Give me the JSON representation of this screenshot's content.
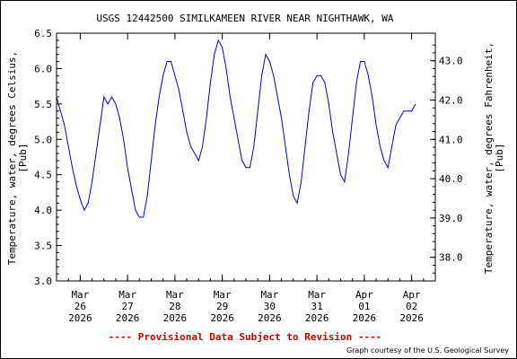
{
  "chart_data": {
    "type": "line",
    "title": "USGS 12442500 SIMILKAMEEN RIVER NEAR NIGHTHAWK, WA",
    "ylabel_left": [
      "Temperature, water, degrees Celsius,",
      "[Pub]"
    ],
    "ylabel_right": [
      "Temperature, water, degrees Fahrenheit,",
      "[Pub]"
    ],
    "ylim": [
      3.0,
      6.5
    ],
    "xlim": [
      "2026-03-25 12:00",
      "2026-04-02 12:00"
    ],
    "y_ticks_left": [
      "3.0",
      "3.5",
      "4.0",
      "4.5",
      "5.0",
      "5.5",
      "6.0",
      "6.5"
    ],
    "y_ticks_right": [
      "38.0",
      "39.0",
      "40.0",
      "41.0",
      "42.0",
      "43.0"
    ],
    "x_ticks": [
      [
        "Mar",
        "26",
        "2026"
      ],
      [
        "Mar",
        "27",
        "2026"
      ],
      [
        "Mar",
        "28",
        "2026"
      ],
      [
        "Mar",
        "29",
        "2026"
      ],
      [
        "Mar",
        "30",
        "2026"
      ],
      [
        "Mar",
        "31",
        "2026"
      ],
      [
        "Apr",
        "01",
        "2026"
      ],
      [
        "Apr",
        "02",
        "2026"
      ]
    ],
    "grid": false,
    "line_color": "#0000cc",
    "series": [
      {
        "points": [
          [
            "2026-03-25 12:00",
            5.6
          ],
          [
            "2026-03-25 14:00",
            5.4
          ],
          [
            "2026-03-25 16:00",
            5.2
          ],
          [
            "2026-03-25 18:00",
            4.9
          ],
          [
            "2026-03-25 20:00",
            4.6
          ],
          [
            "2026-03-25 22:00",
            4.35
          ],
          [
            "2026-03-26 00:00",
            4.15
          ],
          [
            "2026-03-26 02:00",
            4.0
          ],
          [
            "2026-03-26 04:00",
            4.1
          ],
          [
            "2026-03-26 06:00",
            4.4
          ],
          [
            "2026-03-26 08:00",
            4.8
          ],
          [
            "2026-03-26 10:00",
            5.2
          ],
          [
            "2026-03-26 12:00",
            5.6
          ],
          [
            "2026-03-26 14:00",
            5.5
          ],
          [
            "2026-03-26 16:00",
            5.6
          ],
          [
            "2026-03-26 18:00",
            5.5
          ],
          [
            "2026-03-26 20:00",
            5.3
          ],
          [
            "2026-03-26 22:00",
            5.0
          ],
          [
            "2026-03-27 00:00",
            4.6
          ],
          [
            "2026-03-27 02:00",
            4.3
          ],
          [
            "2026-03-27 04:00",
            4.0
          ],
          [
            "2026-03-27 06:00",
            3.9
          ],
          [
            "2026-03-27 08:00",
            3.9
          ],
          [
            "2026-03-27 10:00",
            4.2
          ],
          [
            "2026-03-27 12:00",
            4.7
          ],
          [
            "2026-03-27 14:00",
            5.2
          ],
          [
            "2026-03-27 16:00",
            5.6
          ],
          [
            "2026-03-27 18:00",
            5.9
          ],
          [
            "2026-03-27 20:00",
            6.1
          ],
          [
            "2026-03-27 22:00",
            6.1
          ],
          [
            "2026-03-28 00:00",
            5.9
          ],
          [
            "2026-03-28 02:00",
            5.7
          ],
          [
            "2026-03-28 04:00",
            5.4
          ],
          [
            "2026-03-28 06:00",
            5.1
          ],
          [
            "2026-03-28 08:00",
            4.9
          ],
          [
            "2026-03-28 10:00",
            4.8
          ],
          [
            "2026-03-28 12:00",
            4.7
          ],
          [
            "2026-03-28 14:00",
            4.9
          ],
          [
            "2026-03-28 16:00",
            5.3
          ],
          [
            "2026-03-28 18:00",
            5.8
          ],
          [
            "2026-03-28 20:00",
            6.2
          ],
          [
            "2026-03-28 22:00",
            6.4
          ],
          [
            "2026-03-29 00:00",
            6.3
          ],
          [
            "2026-03-29 02:00",
            6.0
          ],
          [
            "2026-03-29 04:00",
            5.6
          ],
          [
            "2026-03-29 06:00",
            5.3
          ],
          [
            "2026-03-29 08:00",
            5.0
          ],
          [
            "2026-03-29 10:00",
            4.7
          ],
          [
            "2026-03-29 12:00",
            4.6
          ],
          [
            "2026-03-29 14:00",
            4.6
          ],
          [
            "2026-03-29 16:00",
            4.9
          ],
          [
            "2026-03-29 18:00",
            5.4
          ],
          [
            "2026-03-29 20:00",
            5.9
          ],
          [
            "2026-03-29 22:00",
            6.2
          ],
          [
            "2026-03-30 00:00",
            6.1
          ],
          [
            "2026-03-30 02:00",
            5.9
          ],
          [
            "2026-03-30 04:00",
            5.6
          ],
          [
            "2026-03-30 06:00",
            5.3
          ],
          [
            "2026-03-30 08:00",
            4.9
          ],
          [
            "2026-03-30 10:00",
            4.5
          ],
          [
            "2026-03-30 12:00",
            4.2
          ],
          [
            "2026-03-30 14:00",
            4.1
          ],
          [
            "2026-03-30 16:00",
            4.4
          ],
          [
            "2026-03-30 18:00",
            4.9
          ],
          [
            "2026-03-30 20:00",
            5.4
          ],
          [
            "2026-03-30 22:00",
            5.8
          ],
          [
            "2026-03-31 00:00",
            5.9
          ],
          [
            "2026-03-31 02:00",
            5.9
          ],
          [
            "2026-03-31 04:00",
            5.8
          ],
          [
            "2026-03-31 06:00",
            5.5
          ],
          [
            "2026-03-31 08:00",
            5.1
          ],
          [
            "2026-03-31 10:00",
            4.8
          ],
          [
            "2026-03-31 12:00",
            4.5
          ],
          [
            "2026-03-31 14:00",
            4.4
          ],
          [
            "2026-03-31 16:00",
            4.8
          ],
          [
            "2026-03-31 18:00",
            5.3
          ],
          [
            "2026-03-31 20:00",
            5.8
          ],
          [
            "2026-03-31 22:00",
            6.1
          ],
          [
            "2026-04-01 00:00",
            6.1
          ],
          [
            "2026-04-01 02:00",
            5.9
          ],
          [
            "2026-04-01 04:00",
            5.6
          ],
          [
            "2026-04-01 06:00",
            5.2
          ],
          [
            "2026-04-01 08:00",
            4.9
          ],
          [
            "2026-04-01 10:00",
            4.7
          ],
          [
            "2026-04-01 12:00",
            4.6
          ],
          [
            "2026-04-01 14:00",
            4.9
          ],
          [
            "2026-04-01 16:00",
            5.2
          ],
          [
            "2026-04-01 18:00",
            5.3
          ],
          [
            "2026-04-01 20:00",
            5.4
          ],
          [
            "2026-04-01 22:00",
            5.4
          ],
          [
            "2026-04-02 00:00",
            5.4
          ],
          [
            "2026-04-02 02:00",
            5.5
          ]
        ]
      }
    ]
  },
  "footer": {
    "provisional": "---- Provisional Data Subject to Revision ----",
    "credit": "Graph courtesy of the U.S. Geological Survey"
  },
  "colors": {
    "provisional": "#cc0000",
    "axis": "#000000"
  }
}
